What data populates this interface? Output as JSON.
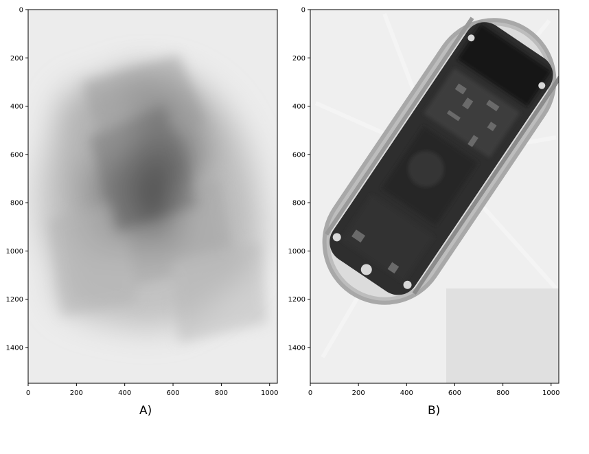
{
  "panels": [
    {
      "caption": "A)",
      "image_description_name": "blurred-xray-reconstruction",
      "x_ticks": [
        "0",
        "200",
        "400",
        "600",
        "800",
        "1000"
      ],
      "y_ticks": [
        "0",
        "200",
        "400",
        "600",
        "800",
        "1000",
        "1200",
        "1400"
      ]
    },
    {
      "caption": "B)",
      "image_description_name": "phone-xray-reconstruction",
      "x_ticks": [
        "0",
        "200",
        "400",
        "600",
        "800",
        "1000"
      ],
      "y_ticks": [
        "0",
        "200",
        "400",
        "600",
        "800",
        "1000",
        "1200",
        "1400"
      ]
    }
  ],
  "axis": {
    "x_values": [
      0,
      200,
      400,
      600,
      800,
      1000
    ],
    "y_values": [
      0,
      200,
      400,
      600,
      800,
      1000,
      1200,
      1400
    ],
    "x_range": [
      0,
      1032
    ],
    "y_range": [
      0,
      1548
    ]
  }
}
